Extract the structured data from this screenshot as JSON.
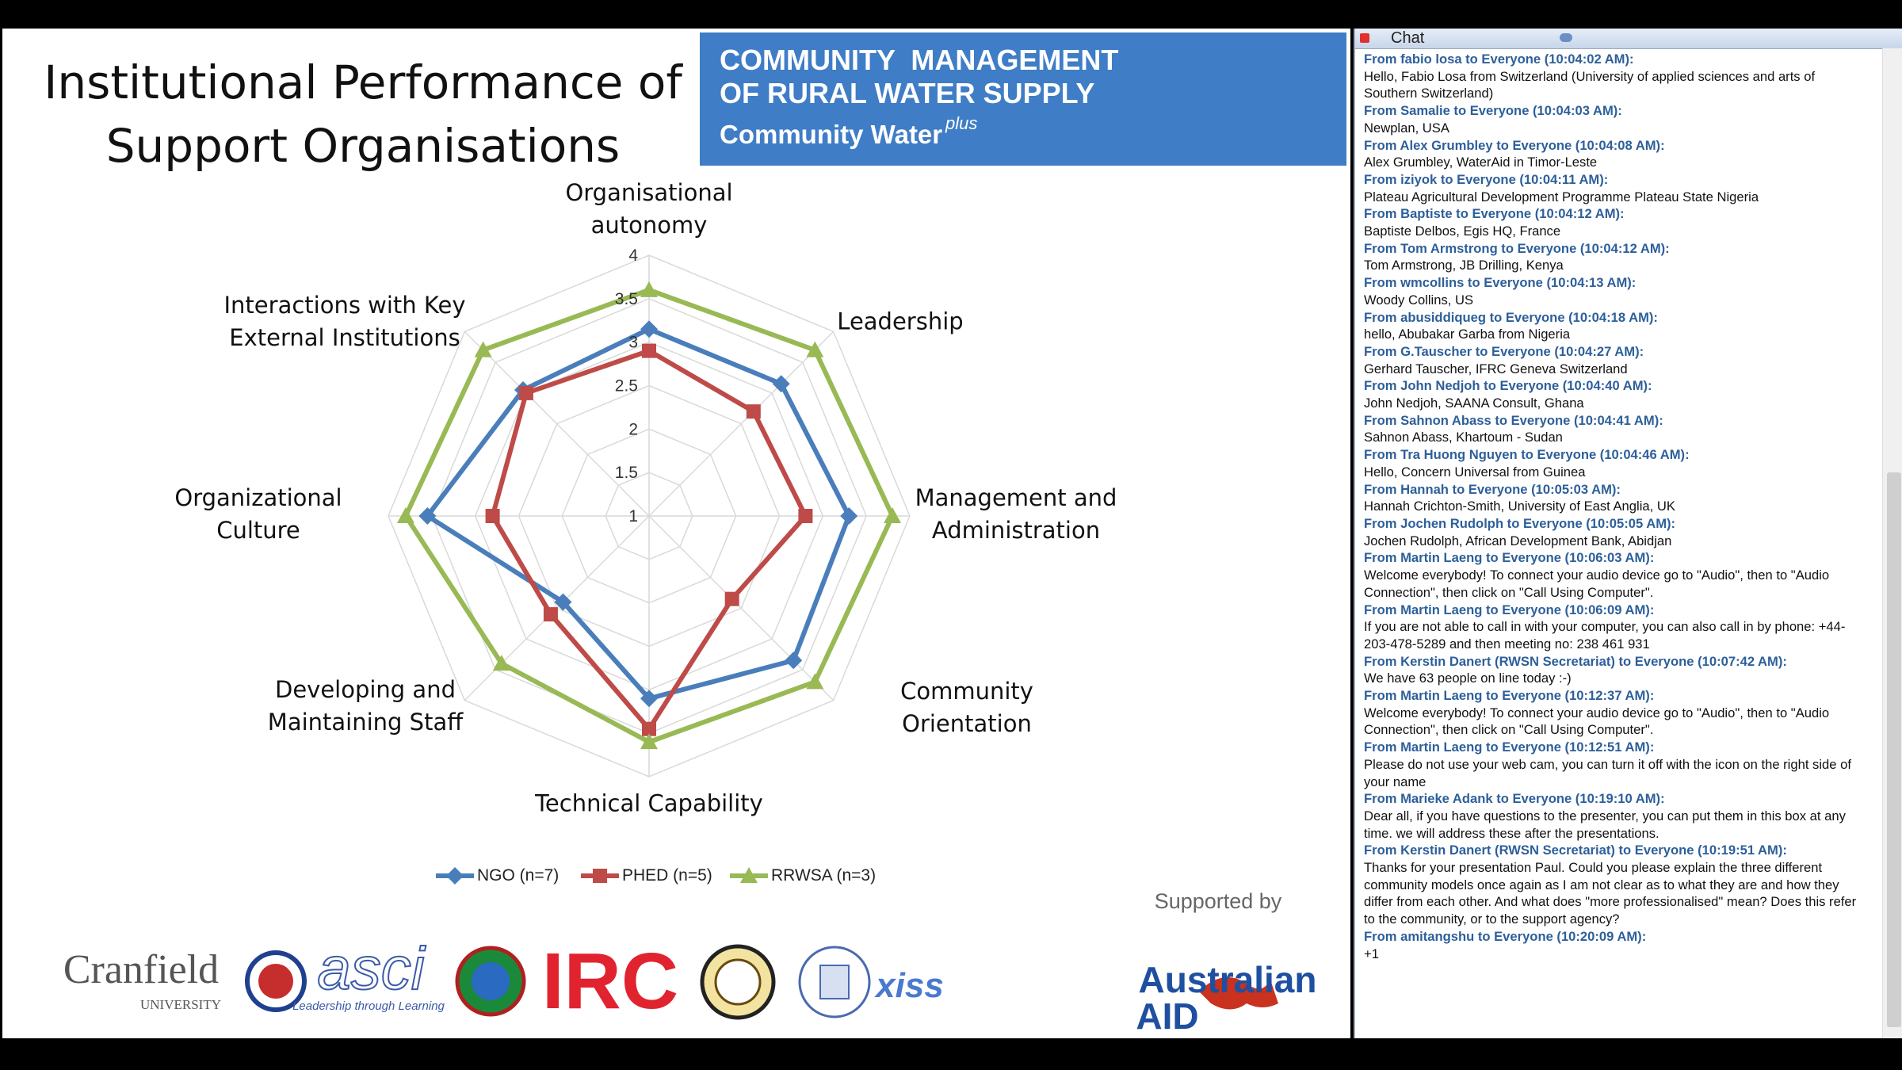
{
  "slide": {
    "title": "Institutional Performance of Support Organisations",
    "banner": {
      "line1": "COMMUNITY  MANAGEMENT",
      "line2": "OF RURAL WATER SUPPLY",
      "brand": "Community Water",
      "brand_sup": "plus"
    },
    "supported_by": "Supported by",
    "sponsor": {
      "line1": "Australian",
      "line2": "AID"
    },
    "logos": {
      "cranfield": "Cranfield",
      "cranfield_sub": "UNIVERSITY",
      "asci": "asci",
      "asci_sub": "Leadership through Learning",
      "irc": "IRC",
      "xiss": "xiss"
    }
  },
  "chart_data": {
    "type": "radar",
    "categories": [
      "Organisational autonomy",
      "Leadership",
      "Management and Administration",
      "Community Orientation",
      "Technical Capability",
      "Developing and Maintaining Staff",
      "Organizational Culture",
      "Interactions with Key External Institutions"
    ],
    "ylim": [
      1,
      4
    ],
    "yticks": [
      1,
      1.5,
      2,
      2.5,
      3,
      3.5,
      4
    ],
    "grid": true,
    "legend": "bottom",
    "series": [
      {
        "name": "NGO (n=7)",
        "color": "#4a7ebb",
        "marker": "diamond",
        "values": [
          3.15,
          3.15,
          3.3,
          3.35,
          3.1,
          2.4,
          3.55,
          3.05
        ]
      },
      {
        "name": "PHED (n=5)",
        "color": "#be4b48",
        "marker": "square",
        "values": [
          2.9,
          2.7,
          2.8,
          2.35,
          3.45,
          2.6,
          2.8,
          3.0
        ]
      },
      {
        "name": "RRWSA (n=3)",
        "color": "#98b954",
        "marker": "triangle",
        "values": [
          3.6,
          3.7,
          3.8,
          3.7,
          3.6,
          3.4,
          3.8,
          3.7
        ]
      }
    ]
  },
  "chat": {
    "title": "Chat",
    "messages": [
      {
        "from": "From fabio losa to Everyone (10:04:02 AM):",
        "text": "Hello, Fabio Losa from Switzerland (University of applied sciences and arts of Southern Switzerland)"
      },
      {
        "from": "From Samalie to Everyone (10:04:03 AM):",
        "text": "Newplan, USA"
      },
      {
        "from": "From Alex Grumbley to Everyone (10:04:08 AM):",
        "text": "Alex Grumbley, WaterAid in Timor-Leste"
      },
      {
        "from": "From iziyok to Everyone (10:04:11 AM):",
        "text": "Plateau Agricultural Development Programme Plateau State Nigeria"
      },
      {
        "from": "From Baptiste to Everyone (10:04:12 AM):",
        "text": "Baptiste Delbos, Egis HQ, France"
      },
      {
        "from": "From Tom Armstrong to Everyone (10:04:12 AM):",
        "text": "Tom Armstrong, JB Drilling, Kenya"
      },
      {
        "from": "From wmcollins to Everyone (10:04:13 AM):",
        "text": "Woody Collins, US"
      },
      {
        "from": "From abusiddiqueg to Everyone (10:04:18 AM):",
        "text": "hello, Abubakar Garba from Nigeria"
      },
      {
        "from": "From G.Tauscher to Everyone (10:04:27 AM):",
        "text": "Gerhard Tauscher, IFRC Geneva Switzerland"
      },
      {
        "from": "From John Nedjoh to Everyone (10:04:40 AM):",
        "text": "John Nedjoh, SAANA Consult, Ghana"
      },
      {
        "from": "From Sahnon Abass to Everyone (10:04:41 AM):",
        "text": "Sahnon Abass, Khartoum - Sudan"
      },
      {
        "from": "From Tra Huong Nguyen to Everyone (10:04:46 AM):",
        "text": "Hello, Concern Universal from Guinea"
      },
      {
        "from": "From Hannah to Everyone (10:05:03 AM):",
        "text": "Hannah Crichton-Smith, University of East Anglia, UK"
      },
      {
        "from": "From Jochen Rudolph to Everyone (10:05:05 AM):",
        "text": "Jochen Rudolph, African Development Bank, Abidjan"
      },
      {
        "from": "From Martin Laeng to Everyone (10:06:03 AM):",
        "text": "Welcome everybody! To connect your audio device go to \"Audio\", then to \"Audio Connection\", then click on \"Call Using Computer\"."
      },
      {
        "from": "From Martin Laeng to Everyone (10:06:09 AM):",
        "text": "If you are not able to call in with your computer, you can also call in by phone: +44-203-478-5289 and then meeting no: 238 461 931"
      },
      {
        "from": "From Kerstin Danert (RWSN Secretariat) to Everyone (10:07:42 AM):",
        "text": "We have 63 people on line today :-)"
      },
      {
        "from": "From Martin Laeng to Everyone (10:12:37 AM):",
        "text": "Welcome everybody! To connect your audio device go to \"Audio\", then to \"Audio Connection\", then click on \"Call Using Computer\"."
      },
      {
        "from": "From Martin Laeng to Everyone (10:12:51 AM):",
        "text": "Please do not use your web cam, you can turn it off with the icon on the right side of your name"
      },
      {
        "from": "From Marieke Adank to Everyone (10:19:10 AM):",
        "text": "Dear all, if you have questions to the presenter, you can put them in this box at any time. we will address these after the presentations."
      },
      {
        "from": "From Kerstin Danert (RWSN Secretariat) to Everyone (10:19:51 AM):",
        "text": "Thanks for your presentation Paul.  Could you please explain the three different community models once again as I am not clear as to what they are and how they differ from each other.  And what does \"more professionalised\" mean?  Does this refer to the community, or to the support agency?"
      },
      {
        "from": "From amitangshu to Everyone (10:20:09 AM):",
        "text": "+1"
      }
    ]
  }
}
